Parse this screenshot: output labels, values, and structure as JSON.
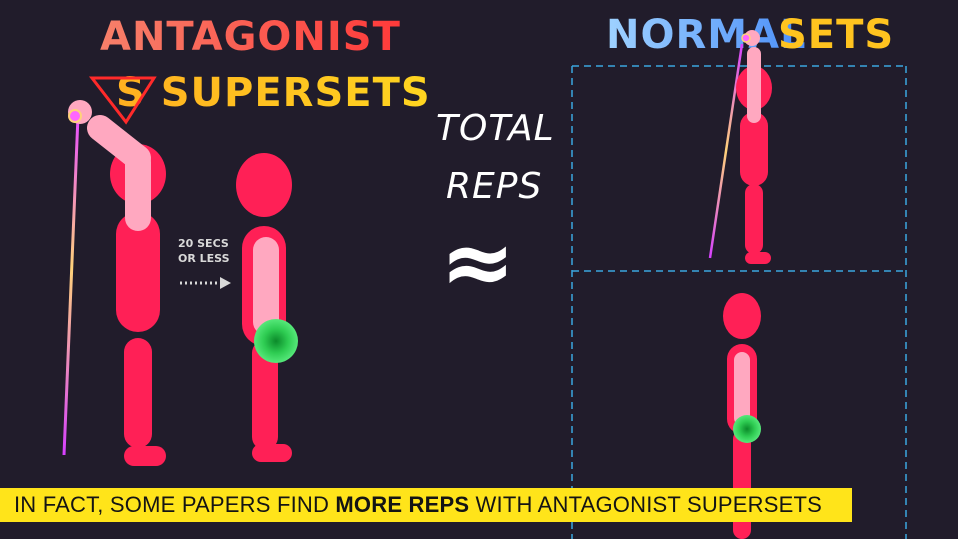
{
  "left_panel": {
    "title_line1": "ANTAGONIST",
    "title_line2": "S SUPERSETS",
    "rest_note_line1": "20 SECS",
    "rest_note_line2": "OR LESS"
  },
  "center": {
    "line1": "TOTAL",
    "line2": "REPS",
    "symbol": "≈"
  },
  "right_panel": {
    "title_word1": "NORMAL",
    "title_word2": "SETS"
  },
  "caption": {
    "before": "IN FACT, SOME PAPERS FIND ",
    "emphasis": "MORE REPS",
    "after": " WITH ANTAGONIST SUPERSETS"
  },
  "colors": {
    "background": "#211c2b",
    "body": "#ff2056",
    "arm": "#ffa8c0",
    "highlight": "#2ecc52",
    "caption_bar": "#ffe41a",
    "guide_lines": "#3aa6e0"
  }
}
